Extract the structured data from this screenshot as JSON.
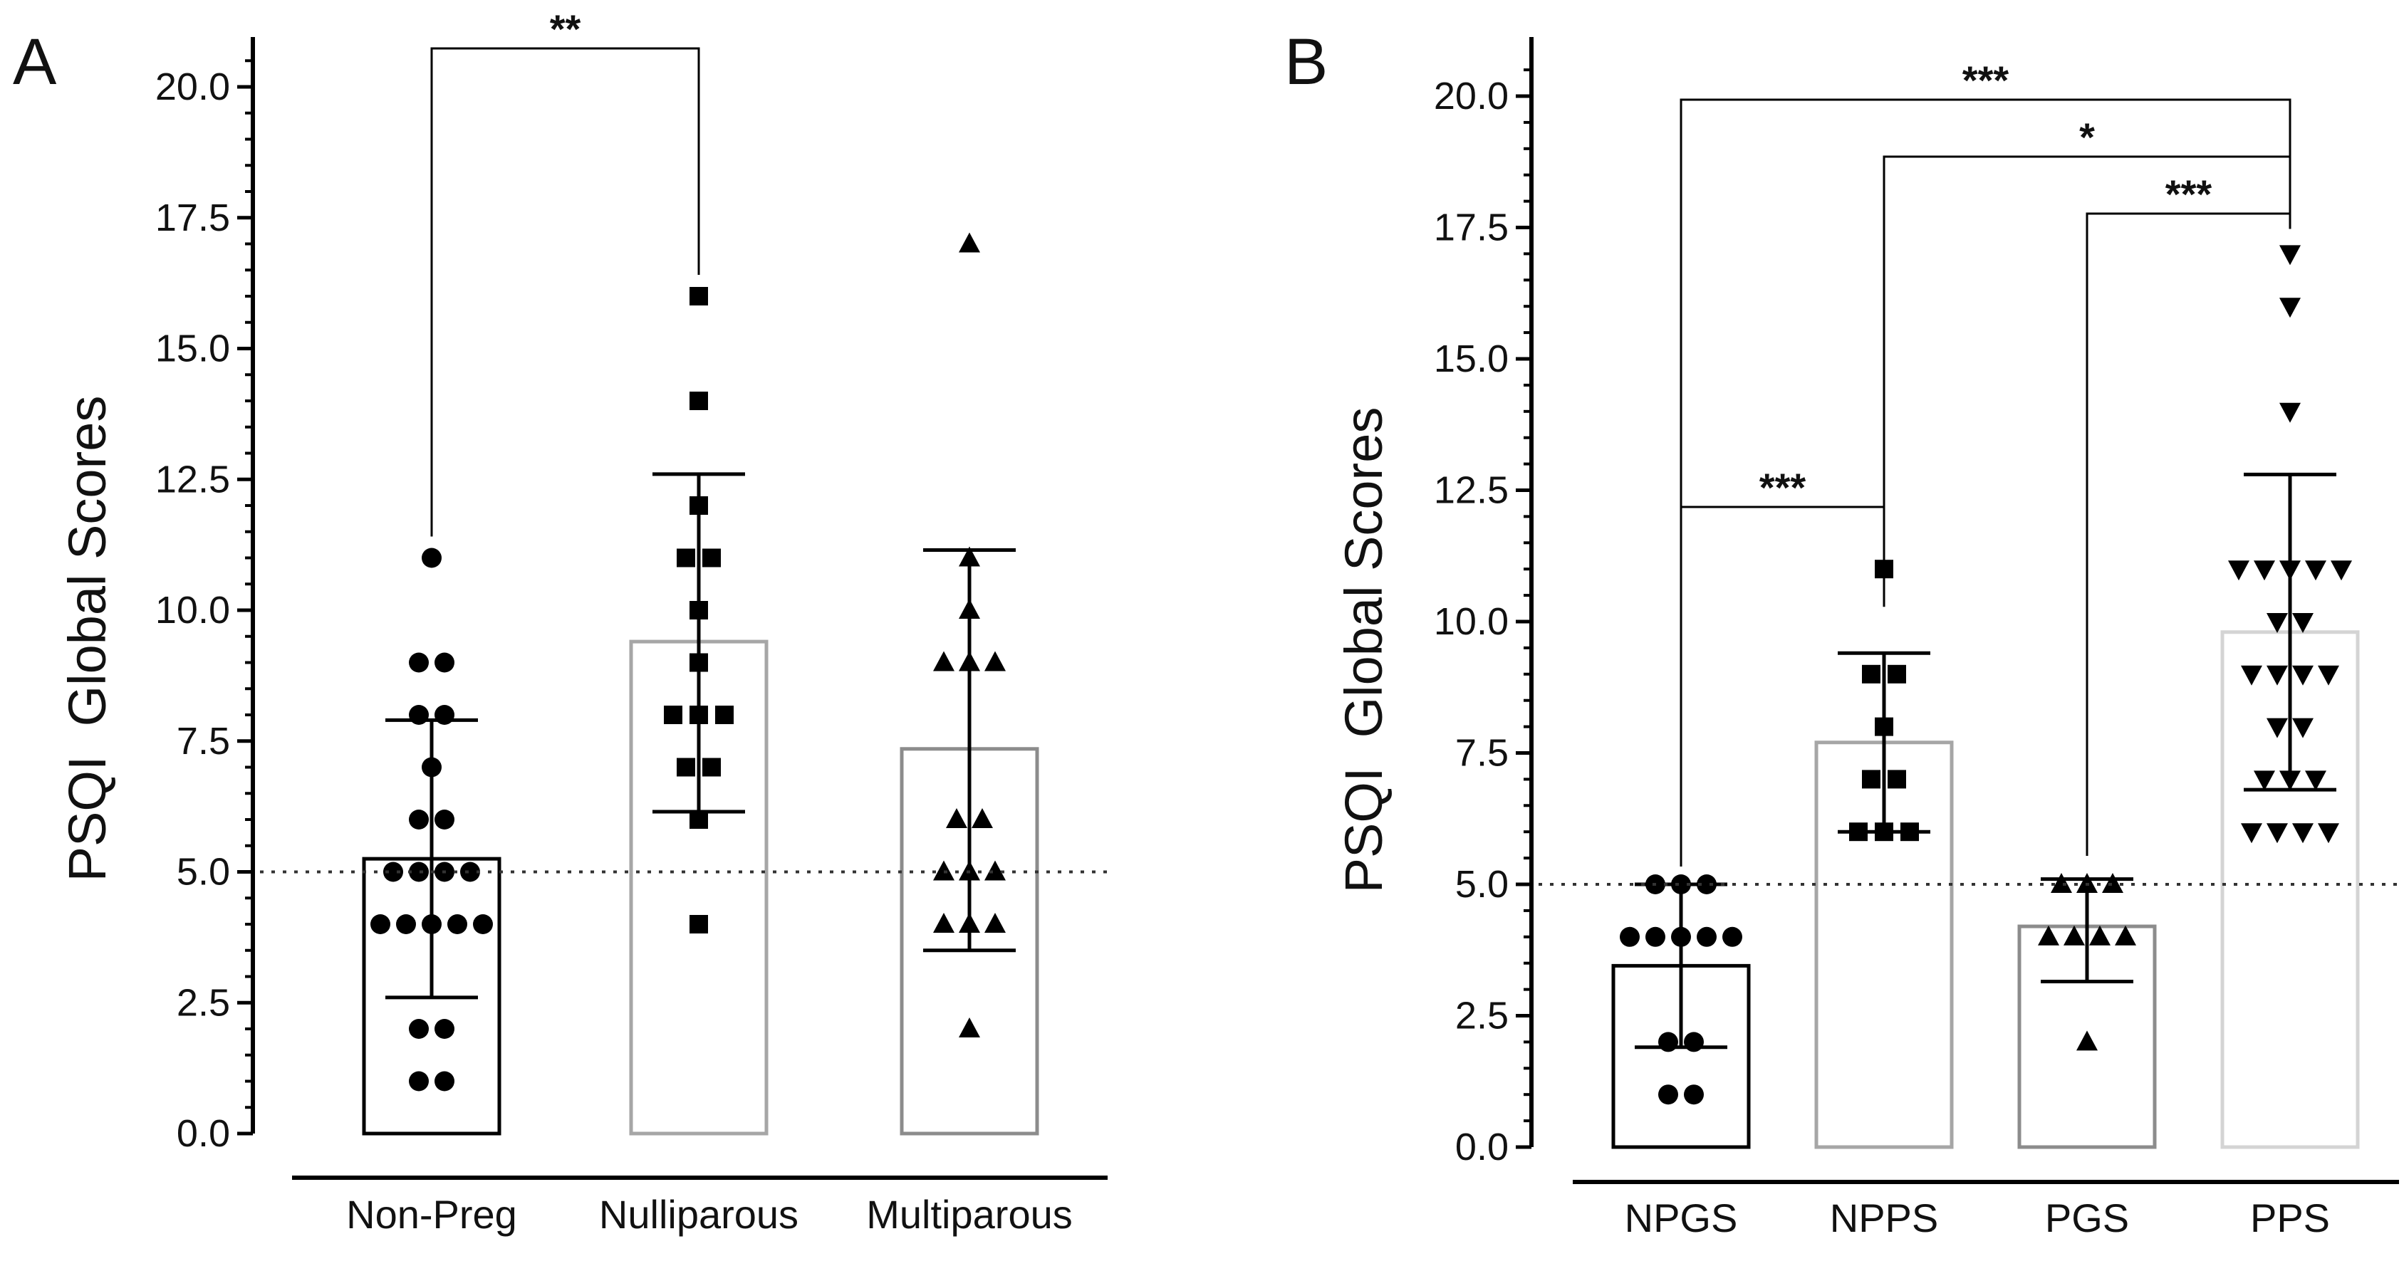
{
  "figure_description_free": true,
  "chart_data": [
    {
      "type": "bar",
      "panel": "A",
      "ylabel": "PSQI  Global Scores",
      "xlabel": "",
      "ylim": [
        0,
        20
      ],
      "yticks": [
        "0.0",
        "2.5",
        "5.0",
        "7.5",
        "10.0",
        "12.5",
        "15.0",
        "17.5",
        "20.0"
      ],
      "reference_line": 5.0,
      "categories": [
        "Non-Preg",
        "Nulliparous",
        "Multiparous"
      ],
      "means": [
        5.25,
        9.4,
        7.35
      ],
      "sd_low": [
        2.6,
        6.15,
        3.5
      ],
      "sd_high": [
        7.9,
        12.6,
        11.15
      ],
      "bar_colors": [
        "#000000",
        "#a6a6a6",
        "#8c8c8c"
      ],
      "markers": [
        "circle",
        "square",
        "triangle-up"
      ],
      "points": [
        [
          11,
          9,
          9,
          8,
          8,
          7,
          6,
          6,
          5,
          5,
          5,
          5,
          4,
          4,
          4,
          4,
          4,
          2,
          2,
          1,
          1
        ],
        [
          16,
          14,
          12,
          11,
          11,
          10,
          9,
          8,
          8,
          8,
          7,
          7,
          6,
          4
        ],
        [
          17,
          11,
          10,
          9,
          9,
          9,
          6,
          6,
          5,
          5,
          5,
          4,
          4,
          4,
          2
        ]
      ],
      "significance": [
        {
          "from": 0,
          "to": 1,
          "label": "**"
        }
      ]
    },
    {
      "type": "bar",
      "panel": "B",
      "ylabel": "PSQI  Global Scores",
      "xlabel": "",
      "ylim": [
        0,
        20
      ],
      "yticks": [
        "0.0",
        "2.5",
        "5.0",
        "7.5",
        "10.0",
        "12.5",
        "15.0",
        "17.5",
        "20.0"
      ],
      "reference_line": 5.0,
      "categories": [
        "NPGS",
        "NPPS",
        "PGS",
        "PPS"
      ],
      "means": [
        3.45,
        7.7,
        4.2,
        9.8
      ],
      "sd_low": [
        1.9,
        6.0,
        3.15,
        6.8
      ],
      "sd_high": [
        5.0,
        9.4,
        5.1,
        12.8
      ],
      "bar_colors": [
        "#000000",
        "#a6a6a6",
        "#8c8c8c",
        "#d4d4d4"
      ],
      "markers": [
        "circle",
        "square",
        "triangle-up",
        "triangle-down"
      ],
      "points": [
        [
          5,
          5,
          5,
          4,
          4,
          4,
          4,
          4,
          2,
          2,
          1,
          1
        ],
        [
          11,
          9,
          9,
          8,
          7,
          7,
          6,
          6,
          6
        ],
        [
          5,
          5,
          5,
          4,
          4,
          4,
          4,
          2
        ],
        [
          17,
          16,
          14,
          11,
          11,
          11,
          11,
          11,
          10,
          10,
          9,
          9,
          9,
          9,
          8,
          8,
          7,
          7,
          7,
          6,
          6,
          6,
          6
        ]
      ],
      "significance": [
        {
          "from": 0,
          "to": 3,
          "label": "***"
        },
        {
          "from": 1,
          "to": 3,
          "label": "*"
        },
        {
          "from": 2,
          "to": 3,
          "label": "***"
        },
        {
          "from": 0,
          "to": 1,
          "label": "***"
        }
      ]
    }
  ]
}
